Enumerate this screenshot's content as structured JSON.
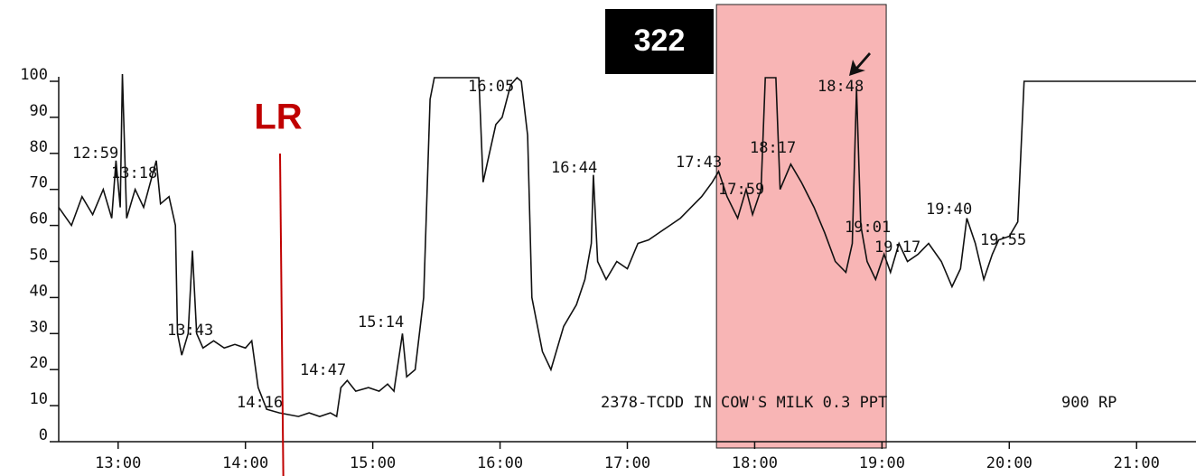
{
  "chart_data": {
    "type": "line",
    "caption": [
      "2378-TCDD IN COW'S MILK 0.3 PPT",
      "900 RP"
    ],
    "highlight": {
      "label": "322",
      "range": [
        1062,
        1142
      ],
      "color": "#f7a8a8"
    },
    "marker": {
      "label": "LR",
      "x": 857,
      "color": "#c00000"
    },
    "peak_labels": [
      "12:59",
      "13:18",
      "13:43",
      "14:16",
      "14:47",
      "15:14",
      "16:05",
      "16:44",
      "17:43",
      "17:59",
      "18:17",
      "18:48",
      "19:01",
      "19:17",
      "19:40",
      "19:55"
    ],
    "x": [
      752,
      758,
      763,
      768,
      773,
      777,
      779,
      781,
      782,
      784,
      788,
      792,
      798,
      800,
      804,
      807,
      808,
      810,
      813,
      815,
      817,
      820,
      825,
      830,
      835,
      840,
      843,
      846,
      850,
      856,
      865,
      870,
      875,
      880,
      883,
      885,
      888,
      892,
      898,
      903,
      907,
      910,
      914,
      916,
      920,
      924,
      927,
      929,
      935,
      947,
      950,
      952,
      955,
      958,
      961,
      965,
      968,
      970,
      973,
      975,
      980,
      984,
      990,
      996,
      1000,
      1003,
      1004,
      1006,
      1010,
      1015,
      1020,
      1025,
      1030,
      1035,
      1040,
      1045,
      1050,
      1055,
      1060,
      1063,
      1067,
      1072,
      1076,
      1079,
      1083,
      1085,
      1090,
      1092,
      1097,
      1102,
      1108,
      1113,
      1118,
      1123,
      1126,
      1128,
      1130,
      1133,
      1137,
      1141,
      1144,
      1148,
      1152,
      1157,
      1162,
      1168,
      1173,
      1177,
      1180,
      1184,
      1188,
      1192,
      1195,
      1200,
      1204,
      1207,
      1215,
      1288
    ],
    "series": [
      {
        "name": "trace",
        "color": "#111111",
        "values": [
          65,
          60,
          68,
          63,
          70,
          62,
          78,
          65,
          102,
          62,
          70,
          65,
          78,
          66,
          68,
          60,
          30,
          24,
          30,
          53,
          30,
          26,
          28,
          26,
          27,
          26,
          28,
          15,
          9,
          8,
          7,
          8,
          7,
          8,
          7,
          15,
          17,
          14,
          15,
          14,
          16,
          14,
          30,
          18,
          20,
          40,
          95,
          101,
          101,
          101,
          101,
          72,
          80,
          88,
          90,
          99,
          101,
          100,
          85,
          40,
          25,
          20,
          32,
          38,
          45,
          55,
          74,
          50,
          45,
          50,
          48,
          55,
          56,
          58,
          60,
          62,
          65,
          68,
          72,
          75,
          68,
          62,
          70,
          63,
          70,
          101,
          101,
          70,
          77,
          72,
          65,
          58,
          50,
          47,
          55,
          98,
          60,
          50,
          45,
          52,
          47,
          55,
          50,
          52,
          55,
          50,
          43,
          48,
          62,
          55,
          45,
          52,
          56,
          57,
          61,
          100,
          100,
          100
        ]
      }
    ],
    "xlim": [
      752,
      1288
    ],
    "ylim": [
      0,
      100
    ],
    "xticks": [
      {
        "value": 780,
        "label": "13:00"
      },
      {
        "value": 840,
        "label": "14:00"
      },
      {
        "value": 900,
        "label": "15:00"
      },
      {
        "value": 960,
        "label": "16:00"
      },
      {
        "value": 1020,
        "label": "17:00"
      },
      {
        "value": 1080,
        "label": "18:00"
      },
      {
        "value": 1140,
        "label": "19:00"
      },
      {
        "value": 1200,
        "label": "20:00"
      },
      {
        "value": 1260,
        "label": "21:00"
      }
    ],
    "yticks": [
      0,
      10,
      20,
      30,
      40,
      50,
      60,
      70,
      80,
      90,
      100
    ]
  }
}
